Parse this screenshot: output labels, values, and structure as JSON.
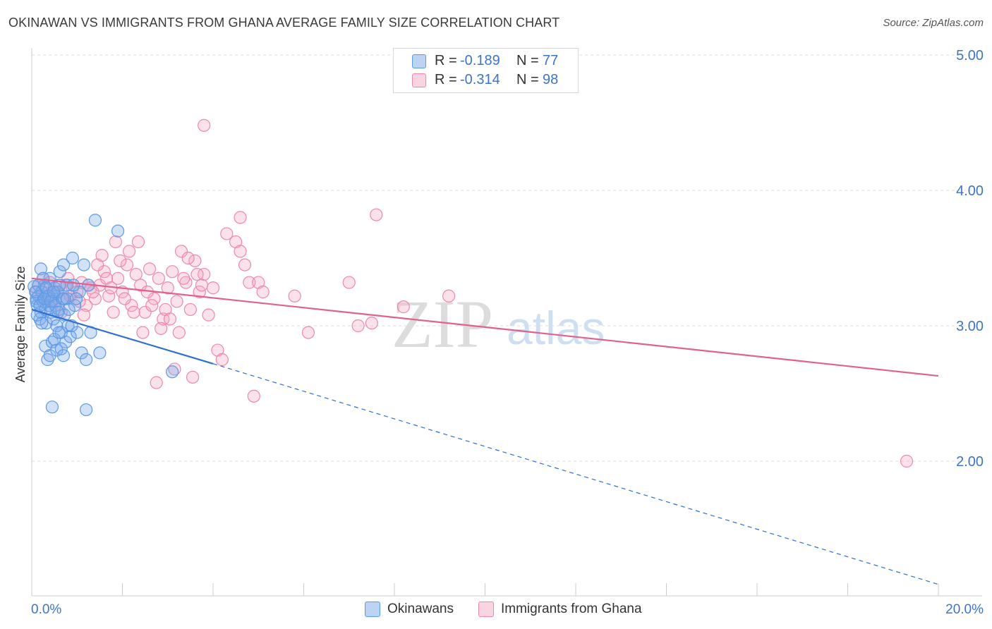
{
  "title": "OKINAWAN VS IMMIGRANTS FROM GHANA AVERAGE FAMILY SIZE CORRELATION CHART",
  "source": "Source: ZipAtlas.com",
  "watermark": {
    "zip": "ZIP",
    "atlas": "atlas"
  },
  "legend": {
    "series1": {
      "r_label": "R =",
      "r_value": "-0.189",
      "n_label": "N =",
      "n_value": "77"
    },
    "series2": {
      "r_label": "R =",
      "r_value": "-0.314",
      "n_label": "N =",
      "n_value": "98"
    }
  },
  "bottom_legend": {
    "series1": "Okinawans",
    "series2": "Immigrants from Ghana"
  },
  "colors": {
    "blue": "#5b9be6",
    "blue_fill": "rgba(122,170,232,0.35)",
    "blue_line": "#2e6fcf",
    "pink": "#ee88aa",
    "pink_fill": "rgba(244,170,196,0.35)",
    "pink_line": "#e0608e",
    "tick_label": "#3d74c9",
    "grid": "#dddddd",
    "axis": "#cccccc"
  },
  "chart_data": {
    "type": "scatter",
    "title": "OKINAWAN VS IMMIGRANTS FROM GHANA AVERAGE FAMILY SIZE CORRELATION CHART",
    "xlabel": "",
    "ylabel": "Average Family Size",
    "xlim": [
      0,
      20
    ],
    "ylim": [
      1.0,
      5.2
    ],
    "x_tick_labels": [
      "0.0%",
      "20.0%"
    ],
    "y_ticks": [
      2,
      3,
      4,
      5
    ],
    "y_tick_labels": [
      "2.00",
      "3.00",
      "4.00",
      "5.00"
    ],
    "grid": true,
    "series": [
      {
        "name": "Okinawans",
        "r": -0.189,
        "n": 77,
        "trend": {
          "x0": 0.0,
          "y0": 3.12,
          "x1": 4.0,
          "y1": 2.72,
          "dashed_to_x": 20.0,
          "dashed_to_y": 1.09
        },
        "points": [
          [
            0.05,
            3.29
          ],
          [
            0.1,
            3.2
          ],
          [
            0.12,
            3.15
          ],
          [
            0.15,
            3.22
          ],
          [
            0.18,
            3.05
          ],
          [
            0.2,
            3.1
          ],
          [
            0.22,
            3.25
          ],
          [
            0.25,
            3.18
          ],
          [
            0.28,
            3.3
          ],
          [
            0.3,
            3.12
          ],
          [
            0.32,
            3.02
          ],
          [
            0.35,
            3.2
          ],
          [
            0.38,
            3.15
          ],
          [
            0.4,
            3.35
          ],
          [
            0.42,
            3.1
          ],
          [
            0.45,
            3.22
          ],
          [
            0.48,
            3.05
          ],
          [
            0.5,
            3.28
          ],
          [
            0.52,
            3.18
          ],
          [
            0.55,
            3.0
          ],
          [
            0.58,
            3.25
          ],
          [
            0.6,
            3.12
          ],
          [
            0.62,
            3.4
          ],
          [
            0.65,
            2.95
          ],
          [
            0.7,
            3.45
          ],
          [
            0.72,
            3.2
          ],
          [
            0.75,
            2.88
          ],
          [
            0.78,
            3.3
          ],
          [
            0.8,
            3.0
          ],
          [
            0.85,
            2.92
          ],
          [
            0.9,
            3.5
          ],
          [
            0.95,
            3.15
          ],
          [
            1.0,
            2.95
          ],
          [
            1.05,
            3.25
          ],
          [
            1.1,
            2.8
          ],
          [
            1.15,
            3.45
          ],
          [
            1.2,
            2.75
          ],
          [
            1.25,
            3.3
          ],
          [
            1.3,
            2.95
          ],
          [
            0.3,
            2.85
          ],
          [
            0.35,
            2.75
          ],
          [
            0.4,
            2.78
          ],
          [
            0.45,
            2.88
          ],
          [
            0.5,
            2.9
          ],
          [
            0.55,
            2.82
          ],
          [
            0.6,
            2.95
          ],
          [
            0.65,
            2.83
          ],
          [
            0.7,
            2.78
          ],
          [
            0.2,
            3.42
          ],
          [
            0.25,
            3.35
          ],
          [
            0.15,
            3.3
          ],
          [
            0.1,
            3.18
          ],
          [
            0.08,
            3.25
          ],
          [
            0.12,
            3.08
          ],
          [
            0.18,
            3.15
          ],
          [
            0.22,
            3.02
          ],
          [
            0.28,
            3.2
          ],
          [
            0.32,
            3.28
          ],
          [
            0.38,
            3.22
          ],
          [
            0.42,
            3.18
          ],
          [
            0.48,
            3.25
          ],
          [
            0.52,
            3.15
          ],
          [
            0.58,
            3.1
          ],
          [
            0.62,
            3.3
          ],
          [
            0.68,
            3.2
          ],
          [
            0.72,
            3.08
          ],
          [
            0.78,
            3.2
          ],
          [
            0.82,
            3.12
          ],
          [
            0.88,
            3.0
          ],
          [
            0.92,
            3.3
          ],
          [
            0.98,
            3.2
          ],
          [
            0.45,
            2.4
          ],
          [
            1.2,
            2.38
          ],
          [
            1.5,
            2.8
          ],
          [
            1.9,
            3.7
          ],
          [
            1.4,
            3.78
          ],
          [
            3.1,
            2.66
          ]
        ]
      },
      {
        "name": "Immigrants from Ghana",
        "r": -0.314,
        "n": 98,
        "trend": {
          "x0": 0.0,
          "y0": 3.35,
          "x1": 20.0,
          "y1": 2.63
        },
        "points": [
          [
            0.1,
            3.25
          ],
          [
            0.15,
            3.3
          ],
          [
            0.2,
            3.2
          ],
          [
            0.25,
            3.35
          ],
          [
            0.3,
            3.28
          ],
          [
            0.35,
            3.18
          ],
          [
            0.4,
            3.32
          ],
          [
            0.5,
            3.25
          ],
          [
            0.6,
            3.3
          ],
          [
            0.7,
            3.2
          ],
          [
            0.8,
            3.35
          ],
          [
            0.9,
            3.28
          ],
          [
            1.0,
            3.25
          ],
          [
            1.1,
            3.32
          ],
          [
            1.2,
            3.15
          ],
          [
            1.3,
            3.28
          ],
          [
            1.4,
            3.2
          ],
          [
            1.5,
            3.3
          ],
          [
            1.6,
            3.4
          ],
          [
            1.7,
            3.22
          ],
          [
            1.8,
            3.1
          ],
          [
            1.9,
            3.35
          ],
          [
            2.0,
            3.25
          ],
          [
            2.1,
            3.45
          ],
          [
            2.2,
            3.15
          ],
          [
            2.3,
            3.38
          ],
          [
            2.4,
            3.3
          ],
          [
            2.5,
            3.1
          ],
          [
            2.6,
            3.42
          ],
          [
            2.7,
            3.2
          ],
          [
            2.8,
            3.35
          ],
          [
            2.9,
            3.05
          ],
          [
            3.0,
            3.28
          ],
          [
            3.1,
            3.4
          ],
          [
            3.2,
            3.18
          ],
          [
            3.3,
            3.55
          ],
          [
            3.4,
            3.32
          ],
          [
            3.5,
            3.12
          ],
          [
            3.6,
            3.48
          ],
          [
            3.7,
            3.25
          ],
          [
            3.8,
            3.38
          ],
          [
            3.9,
            3.08
          ],
          [
            4.0,
            3.28
          ],
          [
            4.1,
            2.82
          ],
          [
            4.2,
            2.75
          ],
          [
            4.3,
            3.68
          ],
          [
            4.5,
            3.62
          ],
          [
            4.6,
            3.55
          ],
          [
            4.7,
            3.45
          ],
          [
            4.8,
            3.32
          ],
          [
            0.3,
            3.22
          ],
          [
            0.45,
            3.18
          ],
          [
            0.55,
            3.25
          ],
          [
            0.65,
            3.1
          ],
          [
            0.75,
            3.3
          ],
          [
            0.85,
            3.22
          ],
          [
            1.05,
            3.18
          ],
          [
            1.15,
            3.08
          ],
          [
            1.25,
            3.3
          ],
          [
            1.35,
            3.25
          ],
          [
            1.45,
            3.45
          ],
          [
            1.55,
            3.52
          ],
          [
            1.65,
            3.35
          ],
          [
            1.75,
            3.28
          ],
          [
            1.85,
            3.62
          ],
          [
            1.95,
            3.48
          ],
          [
            2.05,
            3.2
          ],
          [
            2.15,
            3.55
          ],
          [
            2.25,
            3.1
          ],
          [
            2.35,
            3.62
          ],
          [
            2.45,
            2.95
          ],
          [
            2.55,
            3.25
          ],
          [
            2.65,
            3.15
          ],
          [
            2.75,
            2.58
          ],
          [
            2.85,
            2.98
          ],
          [
            2.95,
            3.12
          ],
          [
            3.05,
            3.05
          ],
          [
            3.15,
            2.68
          ],
          [
            3.25,
            2.95
          ],
          [
            3.35,
            3.35
          ],
          [
            3.45,
            3.5
          ],
          [
            3.55,
            2.62
          ],
          [
            3.65,
            3.38
          ],
          [
            3.75,
            3.3
          ],
          [
            4.6,
            3.8
          ],
          [
            4.9,
            2.48
          ],
          [
            5.0,
            3.32
          ],
          [
            5.1,
            3.25
          ],
          [
            5.8,
            3.22
          ],
          [
            6.1,
            2.95
          ],
          [
            7.0,
            3.32
          ],
          [
            7.2,
            3.0
          ],
          [
            7.5,
            3.02
          ],
          [
            7.6,
            3.82
          ],
          [
            8.2,
            3.14
          ],
          [
            9.2,
            3.22
          ],
          [
            19.3,
            2.0
          ],
          [
            3.8,
            4.48
          ]
        ]
      }
    ]
  }
}
